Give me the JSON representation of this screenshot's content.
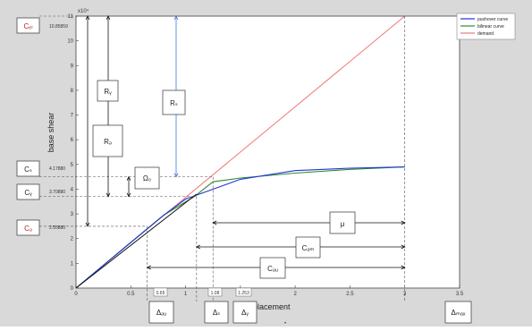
{
  "figure": {
    "xlabel": "displacement",
    "ylabel": "base shear",
    "y_exponent": "x10⁴",
    "x_tick_labels": [
      "0",
      "0.5",
      "1",
      "1.5",
      "2",
      "2.5",
      "3",
      "3.5"
    ],
    "x_tick_values": [
      0,
      0.5,
      1,
      1.5,
      2,
      2.5,
      3,
      3.5
    ],
    "y_tick_labels": [
      "0",
      "1",
      "2",
      "3",
      "4",
      "5",
      "6",
      "7",
      "8",
      "9",
      "10",
      "11"
    ],
    "y_tick_values": [
      0,
      1,
      2,
      3,
      4,
      5,
      6,
      7,
      8,
      9,
      10,
      11
    ],
    "xlim": [
      0,
      3.5
    ],
    "ylim": [
      0,
      11
    ]
  },
  "legend": {
    "position": "top-right",
    "items": [
      {
        "label": "pushover curve",
        "color": "#2233dd"
      },
      {
        "label": "bilinear curve",
        "color": "#2e8b2e"
      },
      {
        "label": "demand",
        "color": "#ee7777"
      }
    ]
  },
  "curves": {
    "demand": {
      "color": "#ee7777",
      "x": [
        0,
        3
      ],
      "y": [
        0,
        11
      ]
    },
    "pushover": {
      "color": "#2233dd",
      "x": [
        0,
        0.5,
        0.8,
        1.0,
        1.25,
        1.5,
        2.0,
        2.5,
        3.0
      ],
      "y": [
        0,
        1.85,
        2.95,
        3.6,
        4.0,
        4.4,
        4.75,
        4.85,
        4.9
      ]
    },
    "bilinear": {
      "color": "#2e8b2e",
      "x": [
        0,
        0.8,
        1.08,
        1.25,
        1.5,
        2.0,
        2.5,
        3.0
      ],
      "y": [
        0,
        2.95,
        3.7,
        4.3,
        4.45,
        4.65,
        4.8,
        4.9
      ]
    }
  },
  "annotations": {
    "C_el": {
      "label": "Cₑₗ",
      "y": 11,
      "value": "10.85859"
    },
    "C_s": {
      "label": "Cₛ",
      "y": 4.5,
      "value": "4.17880"
    },
    "C_y": {
      "label": "Cᵧ",
      "y": 3.7,
      "value": "3.70880"
    },
    "C_d": {
      "label": "Cₔ",
      "y": 2.5,
      "value": "2.55880"
    },
    "D_du": {
      "label": "Δₔᵤ",
      "x": 0.65,
      "value": "0.65"
    },
    "D_s": {
      "label": "Δₛ",
      "x": 1.1,
      "value": "1.08"
    },
    "D_y": {
      "label": "Δᵧ",
      "x": 1.25,
      "value": "1.253"
    },
    "D_max": {
      "label": "Δₘₐₓ",
      "x": 3.0
    },
    "R_y": {
      "label": "Rᵧ"
    },
    "R_d": {
      "label": "Rₔ"
    },
    "R_s": {
      "label": "Rₛ"
    },
    "Omega": {
      "label": "Ω₀"
    },
    "mu": {
      "label": "μ"
    },
    "C_dm": {
      "label": "Cₔₘ"
    },
    "C_du": {
      "label": "Cₔᵤ"
    }
  },
  "footer_mark": "•"
}
